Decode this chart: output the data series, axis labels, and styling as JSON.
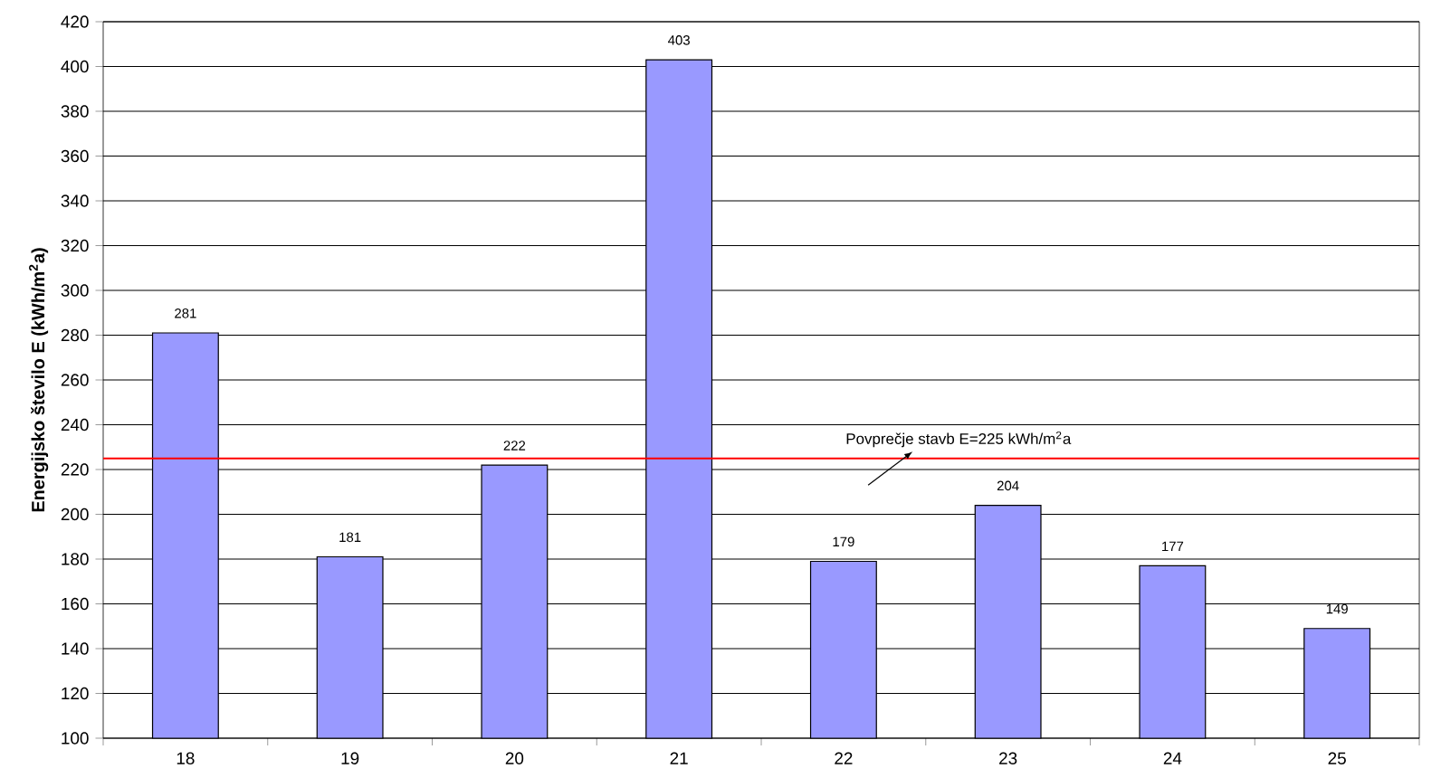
{
  "chart_data": {
    "type": "bar",
    "ylabel": "Energijsko število E (kWh/m$^{2}$a)",
    "categories": [
      "18",
      "19",
      "20",
      "21",
      "22",
      "23",
      "24",
      "25"
    ],
    "values": [
      281,
      181,
      222,
      403,
      179,
      204,
      177,
      149
    ],
    "color": "#9999ff",
    "ylim": [
      100,
      420
    ],
    "yticks": [
      100,
      120,
      140,
      160,
      180,
      200,
      220,
      240,
      260,
      280,
      300,
      320,
      340,
      360,
      380,
      400,
      420
    ],
    "grid": "y",
    "data_labels": true,
    "ref_lines": [
      {
        "axis": "y",
        "value": 225,
        "label": "Povprečje stavb E=225 kWh/m$^{2}$a",
        "color": "#ff0000"
      }
    ]
  }
}
